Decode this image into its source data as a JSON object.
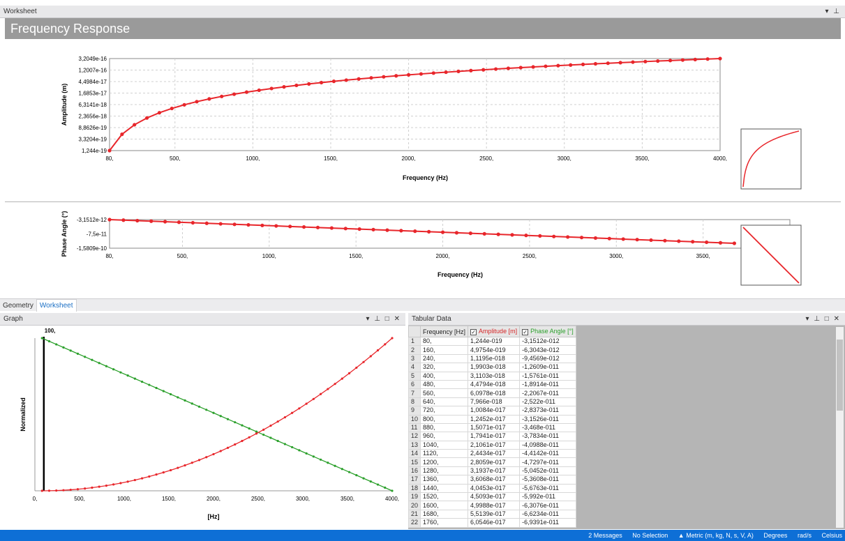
{
  "worksheet": {
    "title": "Worksheet",
    "controls": "▾ ⊥"
  },
  "freq_title": "Frequency Response",
  "amp_chart": {
    "ylabel": "Amplitude (m)",
    "xlabel": "Frequency (Hz)",
    "yticks": [
      "3,2049e-16",
      "1,2007e-16",
      "4,4984e-17",
      "1,6853e-17",
      "6,3141e-18",
      "2,3656e-18",
      "8,8626e-19",
      "3,3204e-19",
      "1,244e-19"
    ],
    "xticks": [
      "80,",
      "500,",
      "1000,",
      "1500,",
      "2000,",
      "2500,",
      "3000,",
      "3500,",
      "4000,"
    ]
  },
  "phase_chart": {
    "ylabel": "Phase Angle (°)",
    "xlabel": "Frequency (Hz)",
    "yticks": [
      "-3,1512e-12",
      "-7,5e-11",
      "-1,5809e-10"
    ],
    "xticks": [
      "80,",
      "500,",
      "1000,",
      "1500,",
      "2000,",
      "2500,",
      "3000,",
      "3500,"
    ]
  },
  "view_tabs": [
    "Geometry",
    "Worksheet"
  ],
  "graph_pane": {
    "title": "Graph",
    "controls": "▾ ⊥ □ ✕"
  },
  "graph": {
    "ylabel": "Normalized",
    "xlabel": "[Hz]",
    "marker_label": "100,",
    "xticks": [
      "0,",
      "500,",
      "1000,",
      "1500,",
      "2000,",
      "2500,",
      "3000,",
      "3500,",
      "4000,"
    ]
  },
  "table_pane": {
    "title": "Tabular Data",
    "controls": "▾ ⊥ □ ✕"
  },
  "table": {
    "headers": {
      "freq": "Frequency [Hz]",
      "amp": "Amplitude [m]",
      "phase": "Phase Angle [°]"
    },
    "rows": [
      [
        "1",
        "80,",
        "1,244e-019",
        "-3,1512e-012"
      ],
      [
        "2",
        "160,",
        "4,9754e-019",
        "-6,3043e-012"
      ],
      [
        "3",
        "240,",
        "1,1195e-018",
        "-9,4569e-012"
      ],
      [
        "4",
        "320,",
        "1,9903e-018",
        "-1,2609e-011"
      ],
      [
        "5",
        "400,",
        "3,1103e-018",
        "-1,5761e-011"
      ],
      [
        "6",
        "480,",
        "4,4794e-018",
        "-1,8914e-011"
      ],
      [
        "7",
        "560,",
        "6,0978e-018",
        "-2,2067e-011"
      ],
      [
        "8",
        "640,",
        "7,966e-018",
        "-2,522e-011"
      ],
      [
        "9",
        "720,",
        "1,0084e-017",
        "-2,8373e-011"
      ],
      [
        "10",
        "800,",
        "1,2452e-017",
        "-3,1526e-011"
      ],
      [
        "11",
        "880,",
        "1,5071e-017",
        "-3,468e-011"
      ],
      [
        "12",
        "960,",
        "1,7941e-017",
        "-3,7834e-011"
      ],
      [
        "13",
        "1040,",
        "2,1061e-017",
        "-4,0988e-011"
      ],
      [
        "14",
        "1120,",
        "2,4434e-017",
        "-4,4142e-011"
      ],
      [
        "15",
        "1200,",
        "2,8059e-017",
        "-4,7297e-011"
      ],
      [
        "16",
        "1280,",
        "3,1937e-017",
        "-5,0452e-011"
      ],
      [
        "17",
        "1360,",
        "3,6068e-017",
        "-5,3608e-011"
      ],
      [
        "18",
        "1440,",
        "4,0453e-017",
        "-5,6763e-011"
      ],
      [
        "19",
        "1520,",
        "4,5093e-017",
        "-5,992e-011"
      ],
      [
        "20",
        "1600,",
        "4,9988e-017",
        "-6,3076e-011"
      ],
      [
        "21",
        "1680,",
        "5,5139e-017",
        "-6,6234e-011"
      ],
      [
        "22",
        "1760,",
        "6,0546e-017",
        "-6,9391e-011"
      ]
    ]
  },
  "status": {
    "messages": "2 Messages",
    "selection": "No Selection",
    "units": "▲ Metric (m, kg, N, s, V, A)",
    "angle": "Degrees",
    "rate": "rad/s",
    "temp": "Celsius"
  },
  "colors": {
    "amplitude": "#e8262b",
    "phase": "#2ca02c",
    "status_bar": "#0e6fd6"
  }
}
